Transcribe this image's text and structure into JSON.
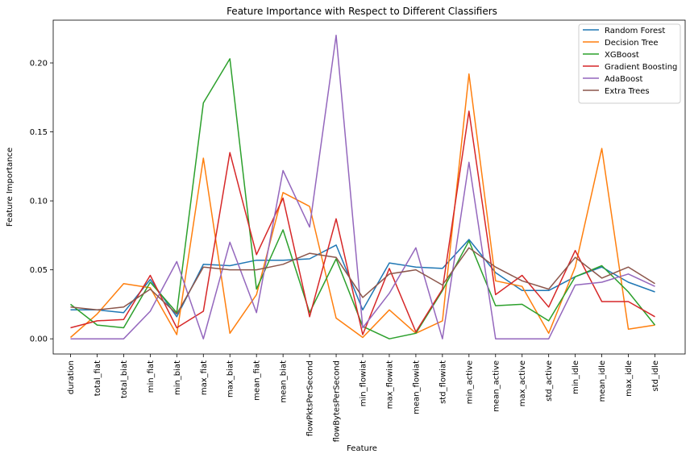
{
  "chart_data": {
    "type": "line",
    "title": "Feature Importance with Respect to Different Classifiers",
    "xlabel": "Feature",
    "ylabel": "Feature Importance",
    "categories": [
      "duration",
      "total_fiat",
      "total_biat",
      "min_fiat",
      "min_biat",
      "max_fiat",
      "max_biat",
      "mean_fiat",
      "mean_biat",
      "flowPktsPerSecond",
      "flowBytesPerSecond",
      "min_flowiat",
      "max_flowiat",
      "mean_flowiat",
      "std_flowiat",
      "min_active",
      "mean_active",
      "max_active",
      "std_active",
      "min_idle",
      "mean_idle",
      "max_idle",
      "std_idle"
    ],
    "ylim": [
      -0.011,
      0.231
    ],
    "yticks": [
      0.0,
      0.05,
      0.1,
      0.15,
      0.2
    ],
    "ytick_labels": [
      "0.00",
      "0.05",
      "0.10",
      "0.15",
      "0.20"
    ],
    "grid": false,
    "legend_position": "top-right",
    "series": [
      {
        "name": "Random Forest",
        "color": "#1f77b4",
        "values": [
          0.021,
          0.021,
          0.019,
          0.043,
          0.016,
          0.054,
          0.053,
          0.057,
          0.057,
          0.058,
          0.068,
          0.021,
          0.055,
          0.052,
          0.051,
          0.072,
          0.048,
          0.035,
          0.035,
          0.045,
          0.052,
          0.041,
          0.034
        ]
      },
      {
        "name": "Decision Tree",
        "color": "#ff7f0e",
        "values": [
          0.001,
          0.018,
          0.04,
          0.037,
          0.003,
          0.131,
          0.004,
          0.032,
          0.106,
          0.096,
          0.015,
          0.001,
          0.021,
          0.004,
          0.013,
          0.192,
          0.042,
          0.038,
          0.004,
          0.052,
          0.138,
          0.007,
          0.01
        ]
      },
      {
        "name": "XGBoost",
        "color": "#2ca02c",
        "values": [
          0.025,
          0.01,
          0.008,
          0.041,
          0.019,
          0.171,
          0.203,
          0.036,
          0.079,
          0.019,
          0.058,
          0.009,
          0.0,
          0.004,
          0.035,
          0.071,
          0.024,
          0.025,
          0.013,
          0.045,
          0.053,
          0.034,
          0.01
        ]
      },
      {
        "name": "Gradient Boosting",
        "color": "#d62728",
        "values": [
          0.008,
          0.013,
          0.014,
          0.046,
          0.008,
          0.02,
          0.135,
          0.061,
          0.102,
          0.016,
          0.087,
          0.003,
          0.051,
          0.005,
          0.036,
          0.165,
          0.032,
          0.046,
          0.023,
          0.064,
          0.027,
          0.027,
          0.016
        ]
      },
      {
        "name": "AdaBoost",
        "color": "#9467bd",
        "values": [
          0.0,
          0.0,
          0.0,
          0.02,
          0.056,
          0.0,
          0.07,
          0.019,
          0.122,
          0.081,
          0.22,
          0.008,
          0.033,
          0.066,
          0.0,
          0.128,
          0.0,
          0.0,
          0.0,
          0.039,
          0.041,
          0.047,
          0.038
        ]
      },
      {
        "name": "Extra Trees",
        "color": "#8c564b",
        "values": [
          0.023,
          0.021,
          0.023,
          0.036,
          0.018,
          0.052,
          0.05,
          0.05,
          0.054,
          0.062,
          0.059,
          0.03,
          0.047,
          0.05,
          0.039,
          0.066,
          0.052,
          0.042,
          0.036,
          0.059,
          0.044,
          0.052,
          0.04
        ]
      }
    ]
  }
}
